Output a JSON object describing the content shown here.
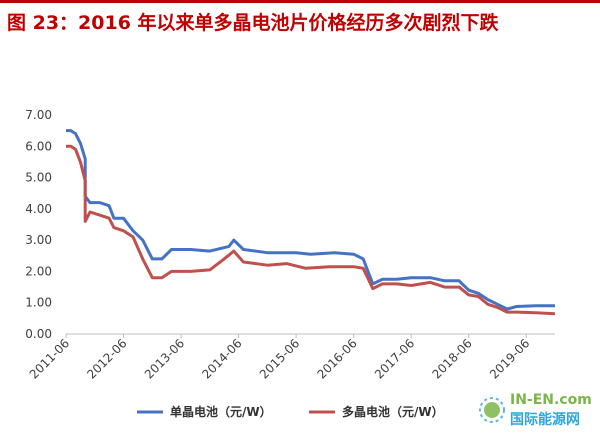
{
  "title": "图 23：2016 年以来单多晶电池片价格经历多次剧烈下跌",
  "watermark": {
    "en": "IN-EN.com",
    "cn": "国际能源网"
  },
  "colors": {
    "accent": "#c00000",
    "mono": "#4472c4",
    "poly": "#c0504d",
    "logo_green": "#7ab648",
    "logo_blue": "#2fa6d9"
  },
  "chart_data": {
    "type": "line",
    "ylim": [
      0,
      7
    ],
    "xlim": [
      "2011-06",
      "2019-12"
    ],
    "yticks": [
      "7.00",
      "6.00",
      "5.00",
      "4.00",
      "3.00",
      "2.00",
      "1.00",
      "0.00"
    ],
    "xticks": [
      "2011-06",
      "2012-06",
      "2013-06",
      "2014-06",
      "2015-06",
      "2016-06",
      "2017-06",
      "2018-06",
      "2019-06"
    ],
    "grid": false,
    "legend_position": "bottom",
    "series": [
      {
        "name": "单晶电池（元/W）",
        "color": "#4472c4",
        "points": [
          [
            "2011-06",
            6.5
          ],
          [
            "2011-07",
            6.5
          ],
          [
            "2011-08",
            6.4
          ],
          [
            "2011-09",
            6.1
          ],
          [
            "2011-10",
            5.6
          ],
          [
            "2011-10",
            4.4
          ],
          [
            "2011-11",
            4.2
          ],
          [
            "2012-01",
            4.2
          ],
          [
            "2012-03",
            4.1
          ],
          [
            "2012-04",
            3.7
          ],
          [
            "2012-06",
            3.7
          ],
          [
            "2012-08",
            3.3
          ],
          [
            "2012-10",
            3.0
          ],
          [
            "2012-12",
            2.4
          ],
          [
            "2013-02",
            2.4
          ],
          [
            "2013-04",
            2.7
          ],
          [
            "2013-08",
            2.7
          ],
          [
            "2013-12",
            2.65
          ],
          [
            "2014-04",
            2.8
          ],
          [
            "2014-05",
            3.0
          ],
          [
            "2014-07",
            2.7
          ],
          [
            "2014-12",
            2.6
          ],
          [
            "2015-06",
            2.6
          ],
          [
            "2015-09",
            2.55
          ],
          [
            "2016-02",
            2.6
          ],
          [
            "2016-06",
            2.55
          ],
          [
            "2016-08",
            2.4
          ],
          [
            "2016-10",
            1.6
          ],
          [
            "2016-12",
            1.75
          ],
          [
            "2017-03",
            1.75
          ],
          [
            "2017-06",
            1.8
          ],
          [
            "2017-10",
            1.8
          ],
          [
            "2018-01",
            1.7
          ],
          [
            "2018-04",
            1.7
          ],
          [
            "2018-06",
            1.4
          ],
          [
            "2018-08",
            1.3
          ],
          [
            "2018-10",
            1.1
          ],
          [
            "2018-12",
            0.95
          ],
          [
            "2019-02",
            0.8
          ],
          [
            "2019-04",
            0.88
          ],
          [
            "2019-08",
            0.9
          ],
          [
            "2019-12",
            0.9
          ]
        ]
      },
      {
        "name": "多晶电池（元/W）",
        "color": "#c0504d",
        "points": [
          [
            "2011-06",
            6.0
          ],
          [
            "2011-07",
            6.0
          ],
          [
            "2011-08",
            5.9
          ],
          [
            "2011-09",
            5.5
          ],
          [
            "2011-10",
            4.9
          ],
          [
            "2011-10",
            3.6
          ],
          [
            "2011-11",
            3.9
          ],
          [
            "2012-01",
            3.8
          ],
          [
            "2012-03",
            3.7
          ],
          [
            "2012-04",
            3.4
          ],
          [
            "2012-06",
            3.3
          ],
          [
            "2012-08",
            3.1
          ],
          [
            "2012-10",
            2.4
          ],
          [
            "2012-12",
            1.8
          ],
          [
            "2013-02",
            1.8
          ],
          [
            "2013-04",
            2.0
          ],
          [
            "2013-08",
            2.0
          ],
          [
            "2013-12",
            2.05
          ],
          [
            "2014-03",
            2.4
          ],
          [
            "2014-05",
            2.65
          ],
          [
            "2014-07",
            2.3
          ],
          [
            "2014-12",
            2.2
          ],
          [
            "2015-04",
            2.25
          ],
          [
            "2015-08",
            2.1
          ],
          [
            "2016-01",
            2.15
          ],
          [
            "2016-06",
            2.15
          ],
          [
            "2016-08",
            2.1
          ],
          [
            "2016-10",
            1.45
          ],
          [
            "2016-12",
            1.6
          ],
          [
            "2017-03",
            1.6
          ],
          [
            "2017-06",
            1.55
          ],
          [
            "2017-10",
            1.65
          ],
          [
            "2018-01",
            1.5
          ],
          [
            "2018-04",
            1.5
          ],
          [
            "2018-06",
            1.25
          ],
          [
            "2018-08",
            1.2
          ],
          [
            "2018-10",
            0.95
          ],
          [
            "2018-12",
            0.85
          ],
          [
            "2019-02",
            0.7
          ],
          [
            "2019-04",
            0.7
          ],
          [
            "2019-08",
            0.68
          ],
          [
            "2019-12",
            0.65
          ]
        ]
      }
    ]
  }
}
